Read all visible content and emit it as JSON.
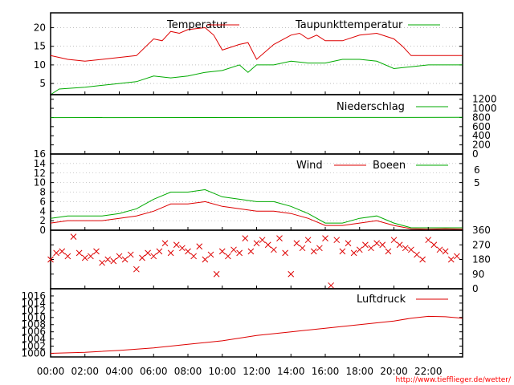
{
  "chart_data": [
    {
      "type": "line",
      "id": "temperature",
      "title": "",
      "ylim": [
        2,
        24
      ],
      "yticks": [
        5,
        10,
        15,
        20
      ],
      "legend_placement": "top",
      "grid": true,
      "series": [
        {
          "name": "Temperatur",
          "color": "#dd0000",
          "x": [
            "00:00",
            "01:00",
            "02:00",
            "03:00",
            "04:00",
            "05:00",
            "06:00",
            "06:30",
            "07:00",
            "07:30",
            "08:00",
            "09:00",
            "09:30",
            "10:00",
            "11:00",
            "11:30",
            "12:00",
            "13:00",
            "14:00",
            "14:30",
            "15:00",
            "15:30",
            "16:00",
            "17:00",
            "18:00",
            "19:00",
            "20:00",
            "20:30",
            "21:00",
            "22:00",
            "23:59"
          ],
          "y": [
            12.5,
            11.5,
            11.0,
            11.5,
            12.0,
            12.5,
            17.0,
            16.5,
            19.0,
            18.5,
            19.5,
            20.0,
            18.0,
            14.0,
            15.5,
            16.0,
            11.5,
            15.5,
            18.0,
            18.5,
            17.0,
            18.0,
            16.5,
            16.5,
            18.0,
            18.5,
            17.0,
            15.0,
            12.5,
            12.5,
            12.5
          ]
        },
        {
          "name": "Taupunkttemperatur",
          "color": "#00aa00",
          "x": [
            "00:00",
            "00:30",
            "02:00",
            "04:00",
            "05:00",
            "06:00",
            "07:00",
            "08:00",
            "09:00",
            "10:00",
            "11:00",
            "11:30",
            "12:00",
            "13:00",
            "14:00",
            "15:00",
            "16:00",
            "17:00",
            "18:00",
            "19:00",
            "20:00",
            "21:00",
            "22:00",
            "23:59"
          ],
          "y": [
            2.0,
            3.5,
            4.0,
            5.0,
            5.5,
            7.0,
            6.5,
            7.0,
            8.0,
            8.5,
            10.0,
            8.0,
            10.0,
            10.0,
            11.0,
            10.5,
            10.5,
            11.5,
            11.5,
            11.0,
            9.0,
            9.5,
            10.0,
            10.0
          ]
        }
      ]
    },
    {
      "type": "line",
      "id": "precipitation",
      "title": "",
      "ylim": [
        0,
        1300
      ],
      "yticks": [
        0,
        200,
        400,
        600,
        800,
        1000,
        1200
      ],
      "legend_placement": "top-right",
      "series": [
        {
          "name": "Niederschlag",
          "color": "#00aa00",
          "x": [
            "00:00",
            "23:59"
          ],
          "y": [
            798,
            802
          ]
        }
      ]
    },
    {
      "type": "line",
      "id": "wind",
      "title": "",
      "ylim": [
        0,
        16
      ],
      "yticks": [
        0,
        2,
        4,
        6,
        8,
        10,
        12,
        14,
        16
      ],
      "right_ticks": [
        "5",
        "6"
      ],
      "grid": true,
      "legend_placement": "top-right",
      "series": [
        {
          "name": "Wind",
          "color": "#dd0000",
          "x": [
            "00:00",
            "01:00",
            "02:00",
            "03:00",
            "04:00",
            "05:00",
            "06:00",
            "07:00",
            "08:00",
            "09:00",
            "10:00",
            "11:00",
            "12:00",
            "13:00",
            "14:00",
            "15:00",
            "16:00",
            "17:00",
            "18:00",
            "19:00",
            "20:00",
            "21:00",
            "22:00",
            "23:00",
            "23:59"
          ],
          "y": [
            1.5,
            2.0,
            2.0,
            2.0,
            2.5,
            3.0,
            4.0,
            5.5,
            5.5,
            6.0,
            5.0,
            4.5,
            4.0,
            4.0,
            3.5,
            2.5,
            1.0,
            1.0,
            1.5,
            2.0,
            1.0,
            0.3,
            0.2,
            0.3,
            0.2
          ]
        },
        {
          "name": "Boeen",
          "color": "#00aa00",
          "x": [
            "00:00",
            "01:00",
            "02:00",
            "03:00",
            "04:00",
            "05:00",
            "06:00",
            "07:00",
            "08:00",
            "09:00",
            "10:00",
            "11:00",
            "12:00",
            "13:00",
            "14:00",
            "15:00",
            "16:00",
            "17:00",
            "18:00",
            "19:00",
            "20:00",
            "21:00",
            "22:00",
            "23:00",
            "23:59"
          ],
          "y": [
            2.5,
            3.0,
            3.0,
            3.0,
            3.5,
            4.5,
            6.5,
            8.0,
            8.0,
            8.5,
            7.0,
            6.5,
            6.0,
            6.0,
            5.0,
            3.5,
            1.5,
            1.5,
            2.5,
            3.0,
            1.5,
            0.5,
            0.5,
            0.5,
            0.5
          ]
        }
      ]
    },
    {
      "type": "scatter",
      "id": "wind-direction",
      "title": "",
      "ylim": [
        0,
        360
      ],
      "yticks": [
        0,
        90,
        180,
        270,
        360
      ],
      "marker": "x",
      "series": [
        {
          "name": "",
          "color": "#dd0000",
          "x": [
            "00:00",
            "00:20",
            "00:40",
            "01:00",
            "01:20",
            "01:40",
            "02:00",
            "02:20",
            "02:40",
            "03:00",
            "03:20",
            "03:40",
            "04:00",
            "04:20",
            "04:40",
            "05:00",
            "05:20",
            "05:40",
            "06:00",
            "06:20",
            "06:40",
            "07:00",
            "07:20",
            "07:40",
            "08:00",
            "08:20",
            "08:40",
            "09:00",
            "09:20",
            "09:40",
            "10:00",
            "10:20",
            "10:40",
            "11:00",
            "11:20",
            "11:40",
            "12:00",
            "12:20",
            "12:40",
            "13:00",
            "13:20",
            "13:40",
            "14:00",
            "14:20",
            "14:40",
            "15:00",
            "15:20",
            "15:40",
            "16:00",
            "16:20",
            "16:40",
            "17:00",
            "17:20",
            "17:40",
            "18:00",
            "18:20",
            "18:40",
            "19:00",
            "19:20",
            "19:40",
            "20:00",
            "20:20",
            "20:40",
            "21:00",
            "21:20",
            "21:40",
            "22:00",
            "22:20",
            "22:40",
            "23:00",
            "23:20",
            "23:40"
          ],
          "y": [
            180,
            220,
            230,
            200,
            320,
            220,
            190,
            200,
            230,
            160,
            180,
            170,
            200,
            180,
            210,
            120,
            190,
            220,
            200,
            230,
            280,
            220,
            270,
            250,
            230,
            200,
            260,
            180,
            210,
            90,
            230,
            200,
            240,
            220,
            310,
            230,
            280,
            300,
            270,
            240,
            310,
            220,
            90,
            280,
            250,
            300,
            230,
            250,
            310,
            20,
            300,
            230,
            280,
            220,
            240,
            270,
            250,
            280,
            270,
            230,
            300,
            270,
            250,
            240,
            210,
            180,
            300,
            270,
            240,
            230,
            180,
            200
          ]
        }
      ]
    },
    {
      "type": "line",
      "id": "pressure",
      "title": "",
      "ylim": [
        999,
        1018
      ],
      "yticks": [
        1000,
        1002,
        1004,
        1006,
        1008,
        1010,
        1012,
        1014,
        1016
      ],
      "legend_placement": "top-right",
      "series": [
        {
          "name": "Luftdruck",
          "color": "#dd0000",
          "x": [
            "00:00",
            "02:00",
            "04:00",
            "06:00",
            "08:00",
            "10:00",
            "12:00",
            "14:00",
            "16:00",
            "18:00",
            "20:00",
            "21:00",
            "22:00",
            "23:00",
            "23:59"
          ],
          "y": [
            1000.0,
            1000.3,
            1000.8,
            1001.5,
            1002.5,
            1003.5,
            1005.0,
            1006.0,
            1007.0,
            1008.0,
            1009.0,
            1009.8,
            1010.3,
            1010.2,
            1009.8
          ]
        }
      ]
    }
  ],
  "x_axis": {
    "ticks": [
      "00:00",
      "02:00",
      "04:00",
      "06:00",
      "08:00",
      "10:00",
      "12:00",
      "14:00",
      "16:00",
      "18:00",
      "20:00",
      "22:00"
    ]
  },
  "footer": {
    "url": "http://www.tiefflieger.de/wetter/"
  }
}
